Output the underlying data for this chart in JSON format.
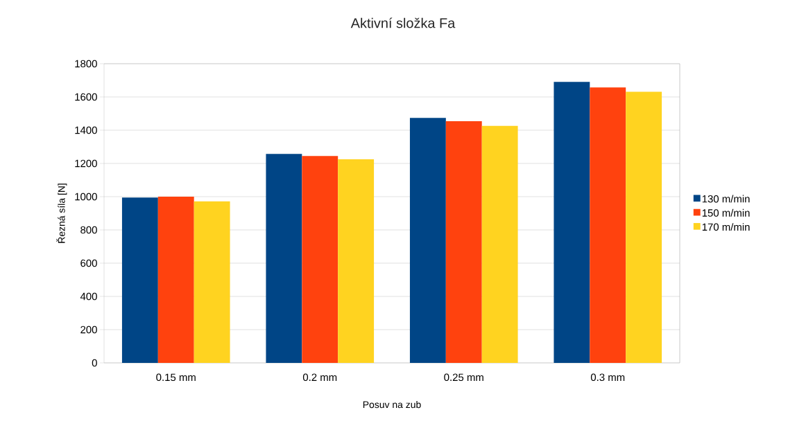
{
  "chart_data": {
    "type": "bar",
    "title": "Aktivní složka Fa",
    "xlabel": "Posuv na zub",
    "ylabel": "Řezná síla [N]",
    "categories": [
      "0.15 mm",
      "0.2 mm",
      "0.25 mm",
      "0.3 mm"
    ],
    "series": [
      {
        "name": "130 m/min",
        "color": "#004586",
        "values": [
          995,
          1257,
          1474,
          1691
        ]
      },
      {
        "name": "150 m/min",
        "color": "#ff420e",
        "values": [
          1000,
          1245,
          1454,
          1657
        ]
      },
      {
        "name": "170 m/min",
        "color": "#ffd320",
        "values": [
          972,
          1225,
          1426,
          1631
        ]
      }
    ],
    "ylim": [
      0,
      1800
    ],
    "yticks": [
      0,
      200,
      400,
      600,
      800,
      1000,
      1200,
      1400,
      1600,
      1800
    ],
    "grid": "y",
    "legend": "right"
  }
}
